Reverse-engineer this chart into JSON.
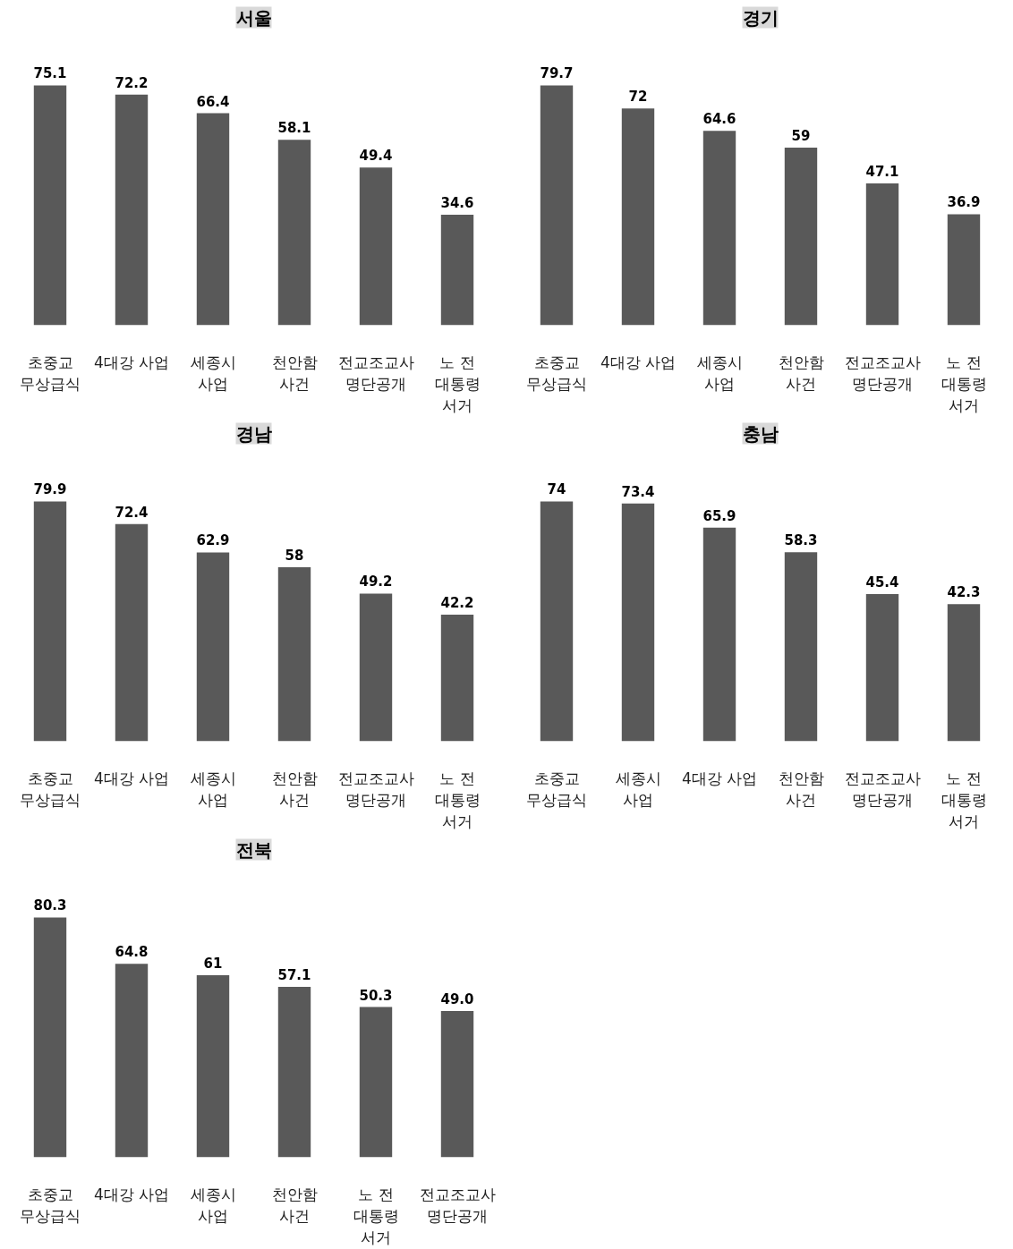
{
  "chart_data": [
    {
      "type": "bar",
      "title": "서울",
      "categories": [
        "초중교\n무상급식",
        "4대강 사업",
        "세종시\n사업",
        "천안함\n사건",
        "전교조교사\n명단공개",
        "노 전\n대통령\n서거"
      ],
      "values": [
        75.1,
        72.2,
        66.4,
        58.1,
        49.4,
        34.6
      ],
      "color": "#595959",
      "data_labels": true,
      "tick_labels": "x"
    },
    {
      "type": "bar",
      "title": "경기",
      "categories": [
        "초중교\n무상급식",
        "4대강 사업",
        "세종시\n사업",
        "천안함\n사건",
        "전교조교사\n명단공개",
        "노 전\n대통령\n서거"
      ],
      "values": [
        79.7,
        72,
        64.6,
        59,
        47.1,
        36.9
      ],
      "color": "#595959",
      "data_labels": true,
      "tick_labels": "x"
    },
    {
      "type": "bar",
      "title": "경남",
      "categories": [
        "초중교\n무상급식",
        "4대강 사업",
        "세종시\n사업",
        "천안함\n사건",
        "전교조교사\n명단공개",
        "노 전\n대통령\n서거"
      ],
      "values": [
        79.9,
        72.4,
        62.9,
        58,
        49.2,
        42.2
      ],
      "color": "#595959",
      "data_labels": true,
      "tick_labels": "x"
    },
    {
      "type": "bar",
      "title": "충남",
      "categories": [
        "초중교\n무상급식",
        "세종시\n사업",
        "4대강 사업",
        "천안함\n사건",
        "전교조교사\n명단공개",
        "노 전\n대통령\n서거"
      ],
      "values": [
        74,
        73.4,
        65.9,
        58.3,
        45.4,
        42.3
      ],
      "color": "#595959",
      "data_labels": true,
      "tick_labels": "x"
    },
    {
      "type": "bar",
      "title": "전북",
      "categories": [
        "초중교\n무상급식",
        "4대강 사업",
        "세종시\n사업",
        "천안함\n사건",
        "노 전\n대통령\n서거",
        "전교조교사\n명단공개"
      ],
      "values": [
        80.3,
        64.8,
        61,
        57.1,
        50.3,
        49.0
      ],
      "value_labels": [
        "80.3",
        "64.8",
        "61",
        "57.1",
        "50.3",
        "49.0"
      ],
      "color": "#595959",
      "tick_labels": "x"
    }
  ]
}
